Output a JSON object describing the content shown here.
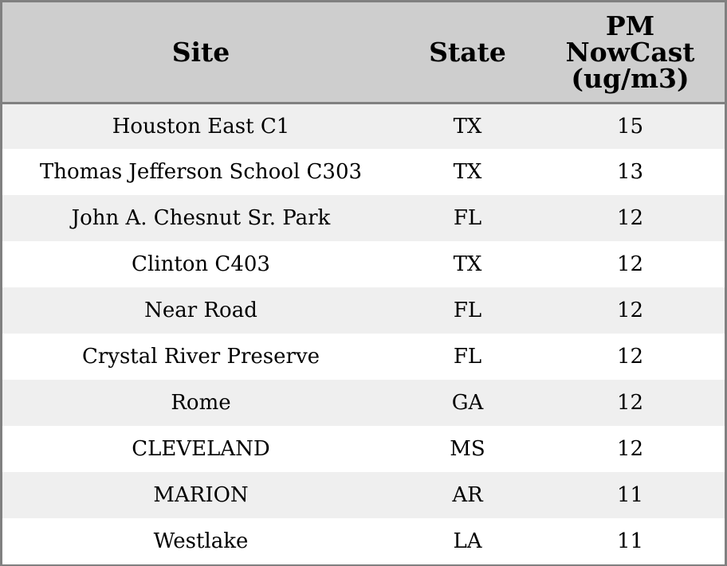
{
  "table": {
    "headers": {
      "site": "Site",
      "state": "State",
      "pm_line1": "PM",
      "pm_line2": "NowCast",
      "pm_line3": "(ug/m3)"
    },
    "rows": [
      {
        "site": "Houston East C1",
        "state": "TX",
        "pm": "15"
      },
      {
        "site": "Thomas Jefferson School C303",
        "state": "TX",
        "pm": "13"
      },
      {
        "site": "John A. Chesnut Sr. Park",
        "state": "FL",
        "pm": "12"
      },
      {
        "site": "Clinton C403",
        "state": "TX",
        "pm": "12"
      },
      {
        "site": "Near Road",
        "state": "FL",
        "pm": "12"
      },
      {
        "site": "Crystal River Preserve",
        "state": "FL",
        "pm": "12"
      },
      {
        "site": "Rome",
        "state": "GA",
        "pm": "12"
      },
      {
        "site": "CLEVELAND",
        "state": "MS",
        "pm": "12"
      },
      {
        "site": "MARION",
        "state": "AR",
        "pm": "11"
      },
      {
        "site": "Westlake",
        "state": "LA",
        "pm": "11"
      }
    ]
  }
}
